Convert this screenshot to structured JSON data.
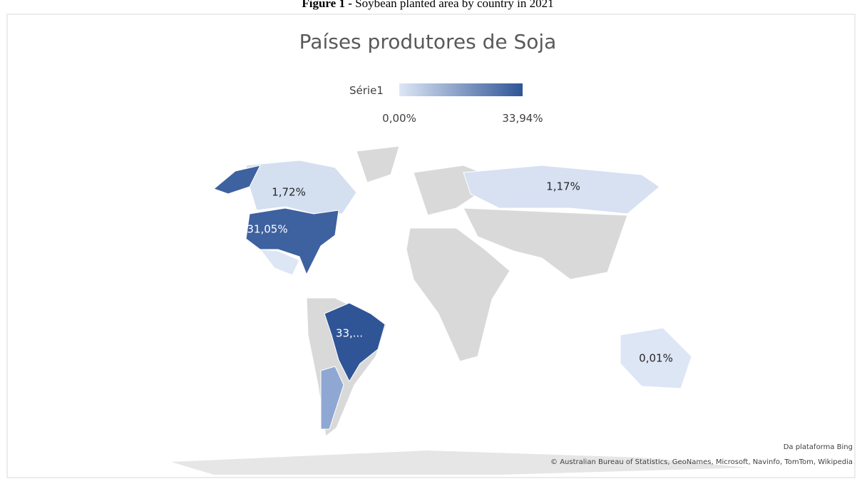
{
  "caption": {
    "label": "Figure 1 -",
    "text": "Soybean planted area by country in 2021"
  },
  "chart_data": {
    "type": "map",
    "title": "Países produtores de Soja",
    "legend_title": "Série1",
    "colorscale": [
      "#dde6f5",
      "#2f5597"
    ],
    "legend_range": [
      {
        "value": 0,
        "label": "0,00%"
      },
      {
        "value": 33.94,
        "label": "33,94%"
      }
    ],
    "values": [
      1.72,
      31.05,
      33.94,
      1.17,
      0.01
    ],
    "value_labels": [
      "1,72%",
      "31,05%",
      "33,...",
      "1,17%",
      "0,01%"
    ]
  },
  "attribution": {
    "source": "Da plataforma Bing",
    "credits": "© Australian Bureau of Statistics, GeoNames, Microsoft, Navinfo, TomTom, Wikipedia"
  }
}
